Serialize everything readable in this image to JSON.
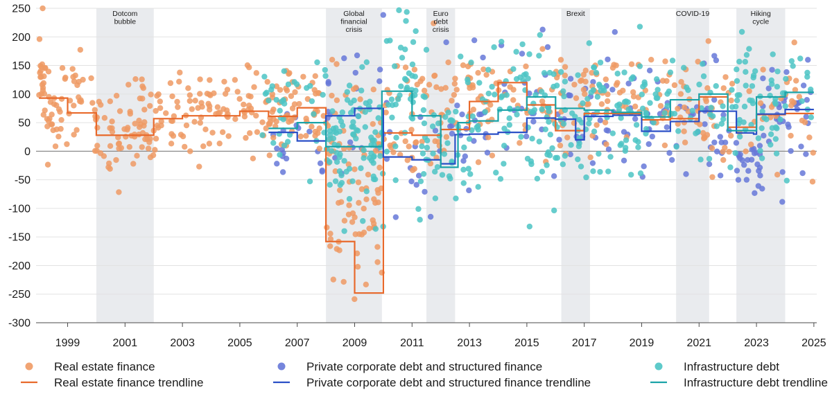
{
  "chart_data": {
    "type": "scatter",
    "xlim": [
      1997.9,
      2025.1
    ],
    "ylim": [
      -300,
      250
    ],
    "x_ticks": [
      "1999",
      "2001",
      "2003",
      "2005",
      "2007",
      "2009",
      "2011",
      "2013",
      "2015",
      "2017",
      "2019",
      "2021",
      "2023",
      "2025"
    ],
    "y_ticks": [
      "250",
      "200",
      "150",
      "100",
      "50",
      "0",
      "-50",
      "-100",
      "-150",
      "-200",
      "-250",
      "-300"
    ],
    "grid": "horizontal",
    "legend_position": "bottom",
    "colors": {
      "real_estate_points": "#ef9a64",
      "real_estate_line": "#e8692b",
      "private_points": "#6678d8",
      "private_line": "#2a4fc6",
      "infra_points": "#4cc4c4",
      "infra_line": "#1aa3a8",
      "band": "#e9ebee",
      "gridline": "#e2e2e2",
      "zeroline": "#8a8a8a"
    },
    "shaded_periods": [
      {
        "label": [
          "Dotcom",
          "bubble"
        ],
        "start": 2000.0,
        "end": 2002.0
      },
      {
        "label": [
          "Global",
          "financial",
          "crisis"
        ],
        "start": 2008.0,
        "end": 2009.95
      },
      {
        "label": [
          "Euro",
          "debt",
          "crisis"
        ],
        "start": 2011.5,
        "end": 2012.5
      },
      {
        "label": [
          "Brexit"
        ],
        "start": 2016.2,
        "end": 2017.2
      },
      {
        "label": [
          "COVID-19"
        ],
        "start": 2020.2,
        "end": 2021.35
      },
      {
        "label": [
          "Hiking",
          "cycle"
        ],
        "start": 2022.3,
        "end": 2024.0
      }
    ],
    "series": [
      {
        "name": "Real estate finance",
        "kind": "points",
        "seed": 11,
        "clusters": [
          {
            "from": 1998.0,
            "to": 1999.9,
            "n": 55,
            "mean": 90,
            "sd": 45
          },
          {
            "from": 1998.0,
            "to": 1998.35,
            "n": 12,
            "mean": 135,
            "sd": 20
          },
          {
            "from": 1999.9,
            "to": 2002.0,
            "n": 70,
            "mean": 35,
            "sd": 42
          },
          {
            "from": 2002.0,
            "to": 2005.2,
            "n": 80,
            "mean": 65,
            "sd": 40
          },
          {
            "from": 2005.2,
            "to": 2008.0,
            "n": 85,
            "mean": 75,
            "sd": 38
          },
          {
            "from": 2008.0,
            "to": 2009.95,
            "n": 85,
            "mean": -60,
            "sd": 100
          },
          {
            "from": 2010.0,
            "to": 2012.0,
            "n": 45,
            "mean": 55,
            "sd": 60
          },
          {
            "from": 2012.0,
            "to": 2016.2,
            "n": 75,
            "mean": 95,
            "sd": 50
          },
          {
            "from": 2016.2,
            "to": 2019.0,
            "n": 55,
            "mean": 100,
            "sd": 50
          },
          {
            "from": 2019.0,
            "to": 2022.0,
            "n": 55,
            "mean": 75,
            "sd": 55
          },
          {
            "from": 2022.0,
            "to": 2025.0,
            "n": 35,
            "mean": 65,
            "sd": 55
          }
        ]
      },
      {
        "name": "Private corporate debt and structured finance",
        "kind": "points",
        "seed": 23,
        "clusters": [
          {
            "from": 2006.0,
            "to": 2008.0,
            "n": 18,
            "mean": 30,
            "sd": 30
          },
          {
            "from": 2008.0,
            "to": 2010.0,
            "n": 20,
            "mean": 80,
            "sd": 70
          },
          {
            "from": 2010.0,
            "to": 2013.0,
            "n": 25,
            "mean": 30,
            "sd": 70
          },
          {
            "from": 2013.0,
            "to": 2016.0,
            "n": 30,
            "mean": 80,
            "sd": 55
          },
          {
            "from": 2016.0,
            "to": 2019.0,
            "n": 35,
            "mean": 70,
            "sd": 55
          },
          {
            "from": 2019.0,
            "to": 2022.3,
            "n": 45,
            "mean": 50,
            "sd": 45
          },
          {
            "from": 2022.3,
            "to": 2023.2,
            "n": 25,
            "mean": -20,
            "sd": 30
          },
          {
            "from": 2023.2,
            "to": 2025.0,
            "n": 35,
            "mean": 75,
            "sd": 45
          }
        ]
      },
      {
        "name": "Infrastructure debt",
        "kind": "points",
        "seed": 37,
        "clusters": [
          {
            "from": 2005.7,
            "to": 2008.0,
            "n": 35,
            "mean": 60,
            "sd": 55
          },
          {
            "from": 2008.0,
            "to": 2010.0,
            "n": 90,
            "mean": 10,
            "sd": 60
          },
          {
            "from": 2010.0,
            "to": 2011.2,
            "n": 40,
            "mean": 110,
            "sd": 75
          },
          {
            "from": 2011.2,
            "to": 2013.0,
            "n": 50,
            "mean": 10,
            "sd": 65
          },
          {
            "from": 2013.0,
            "to": 2016.2,
            "n": 90,
            "mean": 70,
            "sd": 65
          },
          {
            "from": 2016.2,
            "to": 2019.0,
            "n": 75,
            "mean": 70,
            "sd": 65
          },
          {
            "from": 2019.0,
            "to": 2022.3,
            "n": 55,
            "mean": 75,
            "sd": 50
          },
          {
            "from": 2022.3,
            "to": 2025.0,
            "n": 65,
            "mean": 95,
            "sd": 50
          }
        ]
      },
      {
        "name": "Real estate finance trendline",
        "kind": "step",
        "points": [
          [
            1998.0,
            93
          ],
          [
            1999.0,
            67
          ],
          [
            2000.0,
            28
          ],
          [
            2002.0,
            57
          ],
          [
            2003.0,
            62
          ],
          [
            2005.0,
            70
          ],
          [
            2006.0,
            61
          ],
          [
            2007.0,
            76
          ],
          [
            2008.0,
            -158
          ],
          [
            2009.0,
            -248
          ],
          [
            2010.0,
            32
          ],
          [
            2011.0,
            28
          ],
          [
            2012.0,
            38
          ],
          [
            2013.0,
            87
          ],
          [
            2014.0,
            120
          ],
          [
            2015.0,
            81
          ],
          [
            2016.0,
            36
          ],
          [
            2017.0,
            66
          ],
          [
            2019.0,
            55
          ],
          [
            2020.0,
            57
          ],
          [
            2021.0,
            95
          ],
          [
            2022.0,
            42
          ],
          [
            2023.0,
            64
          ],
          [
            2024.0,
            66
          ],
          [
            2025.0,
            66
          ]
        ]
      },
      {
        "name": "Private corporate debt and structured finance trendline",
        "kind": "step",
        "points": [
          [
            2006.0,
            33
          ],
          [
            2007.0,
            18
          ],
          [
            2008.0,
            62
          ],
          [
            2009.0,
            75
          ],
          [
            2010.0,
            -10
          ],
          [
            2011.0,
            -15
          ],
          [
            2012.0,
            -22
          ],
          [
            2012.5,
            29
          ],
          [
            2013.0,
            30
          ],
          [
            2014.0,
            33
          ],
          [
            2015.0,
            58
          ],
          [
            2016.0,
            56
          ],
          [
            2016.7,
            20
          ],
          [
            2017.0,
            61
          ],
          [
            2018.0,
            63
          ],
          [
            2019.0,
            35
          ],
          [
            2020.0,
            52
          ],
          [
            2021.0,
            70
          ],
          [
            2022.3,
            32
          ],
          [
            2022.9,
            30
          ],
          [
            2023.0,
            65
          ],
          [
            2024.0,
            73
          ],
          [
            2025.0,
            73
          ]
        ]
      },
      {
        "name": "Infrastructure debt trendline",
        "kind": "step",
        "points": [
          [
            2006.0,
            40
          ],
          [
            2007.0,
            50
          ],
          [
            2008.0,
            8
          ],
          [
            2009.0,
            8
          ],
          [
            2009.95,
            105
          ],
          [
            2011.0,
            62
          ],
          [
            2012.0,
            -28
          ],
          [
            2012.6,
            50
          ],
          [
            2013.0,
            53
          ],
          [
            2014.0,
            72
          ],
          [
            2015.0,
            95
          ],
          [
            2016.0,
            75
          ],
          [
            2017.0,
            72
          ],
          [
            2018.0,
            68
          ],
          [
            2019.0,
            60
          ],
          [
            2020.0,
            90
          ],
          [
            2021.0,
            100
          ],
          [
            2022.0,
            36
          ],
          [
            2023.0,
            95
          ],
          [
            2024.0,
            103
          ],
          [
            2025.0,
            103
          ]
        ]
      }
    ],
    "legend": [
      {
        "label": "Real estate finance",
        "kind": "point",
        "color_key": "real_estate_points"
      },
      {
        "label": "Private corporate debt and structured finance",
        "kind": "point",
        "color_key": "private_points"
      },
      {
        "label": "Infrastructure debt",
        "kind": "point",
        "color_key": "infra_points"
      },
      {
        "label": "Real estate finance trendline",
        "kind": "line",
        "color_key": "real_estate_line"
      },
      {
        "label": "Private corporate debt and structured finance trendline",
        "kind": "line",
        "color_key": "private_line"
      },
      {
        "label": "Infrastructure debt trendline",
        "kind": "line",
        "color_key": "infra_line"
      }
    ]
  }
}
